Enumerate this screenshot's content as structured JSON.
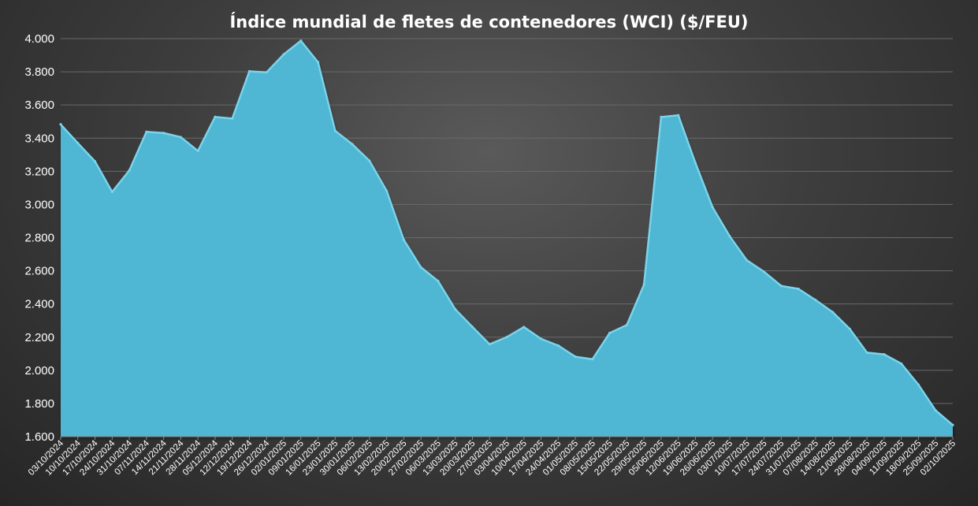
{
  "chart_data": {
    "type": "area",
    "title": "Índice mundial de fletes de contenedores (WCI) ($/FEU)",
    "xlabel": "",
    "ylabel": "",
    "ylim": [
      1600,
      4000
    ],
    "y_ticks": [
      1600,
      1800,
      2000,
      2200,
      2400,
      2600,
      2800,
      3000,
      3200,
      3400,
      3600,
      3800,
      4000
    ],
    "y_tick_labels": [
      "1.600",
      "1.800",
      "2.000",
      "2.200",
      "2.400",
      "2.600",
      "2.800",
      "3.000",
      "3.200",
      "3.400",
      "3.600",
      "3.800",
      "4.000"
    ],
    "grid": true,
    "legend": "none",
    "categories": [
      "03/10/2024",
      "10/10/2024",
      "17/10/2024",
      "24/10/2024",
      "31/10/2024",
      "07/11/2024",
      "14/11/2024",
      "21/11/2024",
      "28/11/2024",
      "05/12/2024",
      "12/12/2024",
      "19/12/2024",
      "26/12/2024",
      "02/01/2025",
      "09/01/2025",
      "16/01/2025",
      "23/01/2025",
      "30/01/2025",
      "06/02/2025",
      "13/02/2025",
      "20/02/2025",
      "27/02/2025",
      "06/03/2025",
      "13/03/2025",
      "20/03/2025",
      "27/03/2025",
      "03/04/2025",
      "10/04/2025",
      "17/04/2025",
      "24/04/2025",
      "01/05/2025",
      "08/05/2025",
      "15/05/2025",
      "22/05/2025",
      "29/05/2025",
      "05/06/2025",
      "12/06/2025",
      "19/06/2025",
      "26/06/2025",
      "03/07/2025",
      "10/07/2025",
      "17/07/2025",
      "24/07/2025",
      "31/07/2025",
      "07/08/2025",
      "14/08/2025",
      "21/08/2025",
      "28/08/2025",
      "04/09/2025",
      "11/09/2025",
      "18/09/2025",
      "25/09/2025",
      "02/10/2025"
    ],
    "series": [
      {
        "values": [
          3483,
          3370,
          3260,
          3076,
          3205,
          3438,
          3431,
          3406,
          3323,
          3528,
          3518,
          3803,
          3797,
          3905,
          3987,
          3858,
          3444,
          3363,
          3263,
          3082,
          2787,
          2621,
          2538,
          2368,
          2262,
          2157,
          2200,
          2261,
          2190,
          2149,
          2082,
          2067,
          2225,
          2273,
          2516,
          3527,
          3538,
          3250,
          2983,
          2808,
          2663,
          2594,
          2509,
          2491,
          2424,
          2351,
          2249,
          2107,
          2096,
          2040,
          1913,
          1758,
          1670
        ]
      }
    ],
    "colors": {
      "area_fill": "#4fb6d3",
      "area_edge": "#7ad3ea",
      "grid": "#6a6a6a",
      "text": "#ffffff"
    }
  }
}
